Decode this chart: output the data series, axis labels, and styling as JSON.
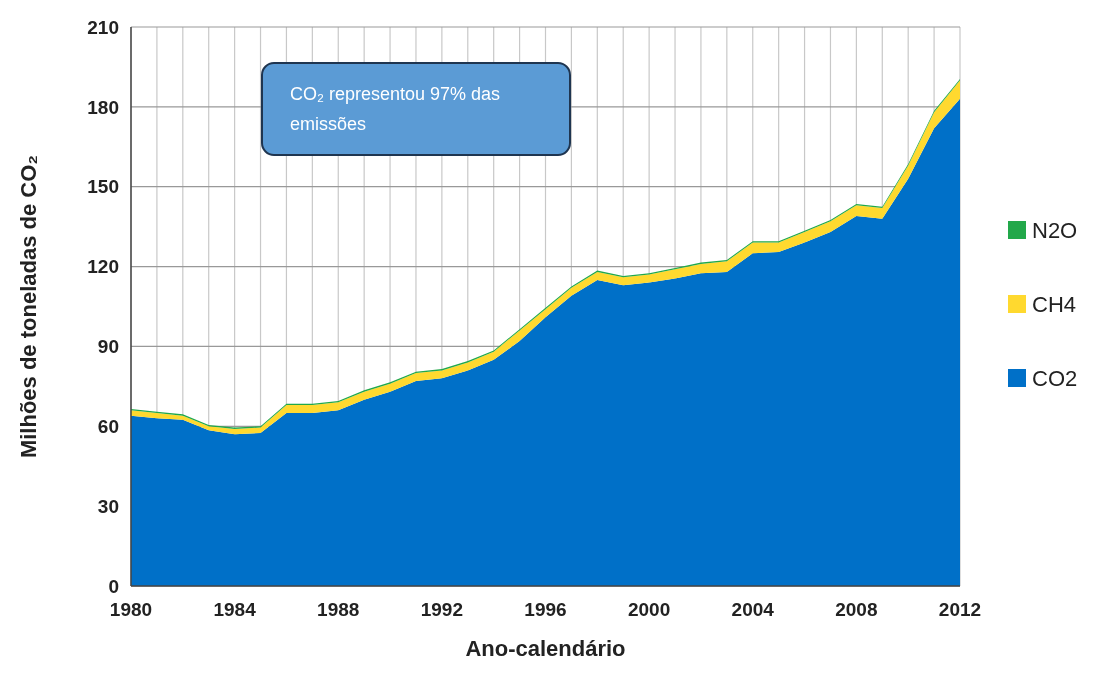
{
  "chart_data": {
    "type": "area",
    "stacked": true,
    "xlabel": "Ano-calendário",
    "ylabel": "Milhões de toneladas de CO₂",
    "annotations": [
      "CO₂ representou 97% das emissões"
    ],
    "x": [
      1980,
      1981,
      1982,
      1983,
      1984,
      1985,
      1986,
      1987,
      1988,
      1989,
      1990,
      1991,
      1992,
      1993,
      1994,
      1995,
      1996,
      1997,
      1998,
      1999,
      2000,
      2001,
      2002,
      2003,
      2004,
      2005,
      2006,
      2007,
      2008,
      2009,
      2010,
      2011,
      2012
    ],
    "series": [
      {
        "name": "CO2",
        "color": "#0070c8",
        "values": [
          64,
          63,
          62.5,
          58.5,
          57,
          57.5,
          65,
          65,
          66,
          70,
          73,
          77,
          78,
          81,
          85,
          92,
          101,
          109,
          115,
          113,
          114,
          115.5,
          117.5,
          118,
          125,
          125.5,
          129,
          133,
          139,
          138,
          153,
          172,
          183
        ]
      },
      {
        "name": "CH4",
        "color": "#ffd92f",
        "values": [
          2,
          2,
          1.5,
          1.5,
          2,
          2,
          3,
          3,
          3,
          3,
          3,
          3,
          3,
          3,
          3,
          4,
          3,
          3,
          3,
          3,
          3,
          3.5,
          3.5,
          4,
          4,
          3.5,
          4,
          4,
          4,
          4,
          5,
          6,
          7
        ]
      },
      {
        "name": "N2O",
        "color": "#22a84a",
        "values": [
          0.5,
          0.5,
          0.5,
          0.5,
          0.5,
          0.5,
          0.5,
          0.5,
          0.5,
          0.5,
          0.5,
          0.5,
          0.5,
          0.5,
          0.5,
          0.5,
          0.5,
          0.5,
          0.5,
          0.5,
          0.5,
          0.5,
          0.5,
          0.5,
          0.5,
          0.5,
          0.5,
          0.5,
          0.5,
          0.5,
          0.5,
          0.5,
          0.5
        ]
      }
    ],
    "xlim": [
      1980,
      2012
    ],
    "xticks": [
      1980,
      {
        "value": 1981,
        "label": null
      },
      {
        "value": 1982,
        "label": null
      },
      {
        "value": 1983,
        "label": null
      },
      1984,
      {
        "value": 1985,
        "label": null
      },
      {
        "value": 1986,
        "label": null
      },
      {
        "value": 1987,
        "label": null
      },
      1988,
      {
        "value": 1989,
        "label": null
      },
      {
        "value": 1990,
        "label": null
      },
      {
        "value": 1991,
        "label": null
      },
      1992,
      {
        "value": 1993,
        "label": null
      },
      {
        "value": 1994,
        "label": null
      },
      {
        "value": 1995,
        "label": null
      },
      1996,
      {
        "value": 1997,
        "label": null
      },
      {
        "value": 1998,
        "label": null
      },
      {
        "value": 1999,
        "label": null
      },
      2000,
      {
        "value": 2001,
        "label": null
      },
      {
        "value": 2002,
        "label": null
      },
      {
        "value": 2003,
        "label": null
      },
      2004,
      {
        "value": 2005,
        "label": null
      },
      {
        "value": 2006,
        "label": null
      },
      {
        "value": 2007,
        "label": null
      },
      2008,
      {
        "value": 2009,
        "label": null
      },
      {
        "value": 2010,
        "label": null
      },
      {
        "value": 2011,
        "label": null
      },
      2012
    ],
    "ylim": [
      0,
      210
    ],
    "yticks": [
      0,
      30,
      60,
      90,
      120,
      150,
      180,
      210
    ],
    "grid": true,
    "legend": "right"
  }
}
